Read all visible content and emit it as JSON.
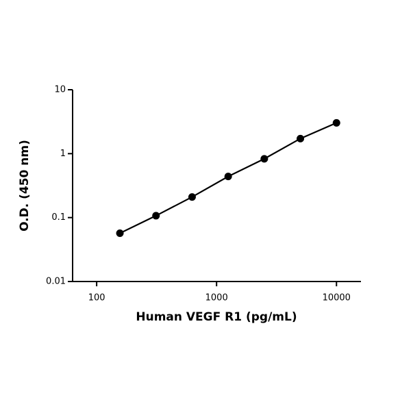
{
  "chart_data": {
    "type": "scatter",
    "x_label": "Human VEGF R1 (pg/mL)",
    "y_label": "O.D. (450 nm)",
    "x_log": true,
    "y_log": true,
    "xlim": [
      63,
      16000
    ],
    "xticks": [
      100,
      1000,
      10000
    ],
    "ylim": [
      0.01,
      10
    ],
    "yticks": [
      0.01,
      0.1,
      1,
      10
    ],
    "x": [
      156.25,
      312.5,
      625,
      1250,
      2500,
      5000,
      10000
    ],
    "series": [
      {
        "color": "#000000",
        "values": [
          0.057,
          0.107,
          0.21,
          0.44,
          0.83,
          1.72,
          3.03
        ]
      }
    ],
    "fit_line": true
  }
}
